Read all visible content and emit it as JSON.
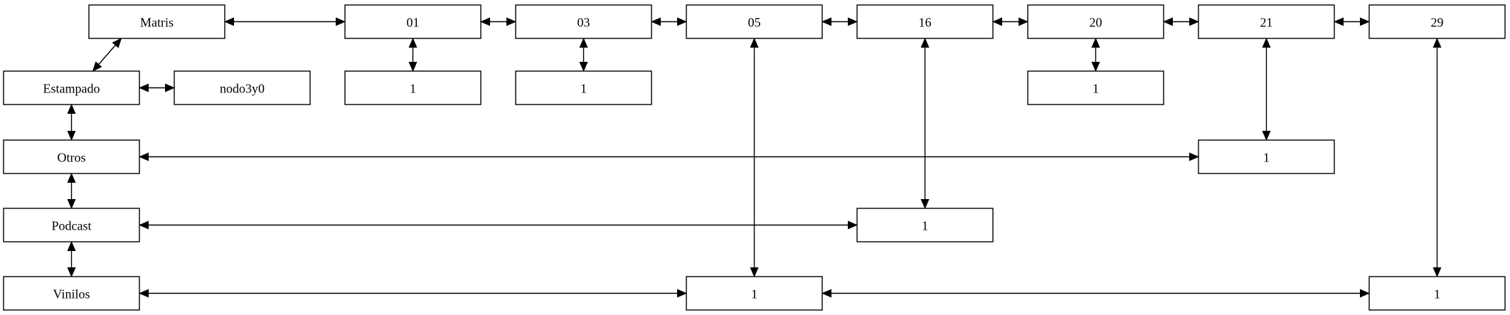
{
  "diagram": {
    "type": "sparse-matrix",
    "root": {
      "id": "matris",
      "label": "Matris"
    },
    "columns": [
      {
        "id": "col01",
        "label": "01"
      },
      {
        "id": "col03",
        "label": "03"
      },
      {
        "id": "col05",
        "label": "05"
      },
      {
        "id": "col16",
        "label": "16"
      },
      {
        "id": "col20",
        "label": "20"
      },
      {
        "id": "col21",
        "label": "21"
      },
      {
        "id": "col29",
        "label": "29"
      }
    ],
    "rows": [
      {
        "id": "estampado",
        "label": "Estampado"
      },
      {
        "id": "otros",
        "label": "Otros"
      },
      {
        "id": "podcast",
        "label": "Podcast"
      },
      {
        "id": "vinilos",
        "label": "Vinilos"
      }
    ],
    "extra_nodes": [
      {
        "id": "nodo3y0",
        "label": "nodo3y0"
      }
    ],
    "cells": [
      {
        "id": "cell-01-top",
        "label": "1"
      },
      {
        "id": "cell-03-top",
        "label": "1"
      },
      {
        "id": "cell-20-top",
        "label": "1"
      },
      {
        "id": "cell-otros-21",
        "label": "1"
      },
      {
        "id": "cell-podcast-16",
        "label": "1"
      },
      {
        "id": "cell-vinilos-05",
        "label": "1"
      },
      {
        "id": "cell-vinilos-29",
        "label": "1"
      }
    ],
    "edges": [
      [
        "matris",
        "col01"
      ],
      [
        "matris",
        "estampado"
      ],
      [
        "col01",
        "col03"
      ],
      [
        "col03",
        "col05"
      ],
      [
        "col05",
        "col16"
      ],
      [
        "col16",
        "col20"
      ],
      [
        "col20",
        "col21"
      ],
      [
        "col21",
        "col29"
      ],
      [
        "estampado",
        "nodo3y0"
      ],
      [
        "estampado",
        "otros"
      ],
      [
        "otros",
        "podcast"
      ],
      [
        "podcast",
        "vinilos"
      ],
      [
        "col01",
        "cell-01-top"
      ],
      [
        "col03",
        "cell-03-top"
      ],
      [
        "col20",
        "cell-20-top"
      ],
      [
        "col21",
        "cell-otros-21"
      ],
      [
        "col16",
        "cell-podcast-16"
      ],
      [
        "col05",
        "cell-vinilos-05"
      ],
      [
        "col29",
        "cell-vinilos-29"
      ],
      [
        "otros",
        "cell-otros-21"
      ],
      [
        "podcast",
        "cell-podcast-16"
      ],
      [
        "vinilos",
        "cell-vinilos-05"
      ],
      [
        "cell-vinilos-05",
        "cell-vinilos-29"
      ]
    ]
  }
}
